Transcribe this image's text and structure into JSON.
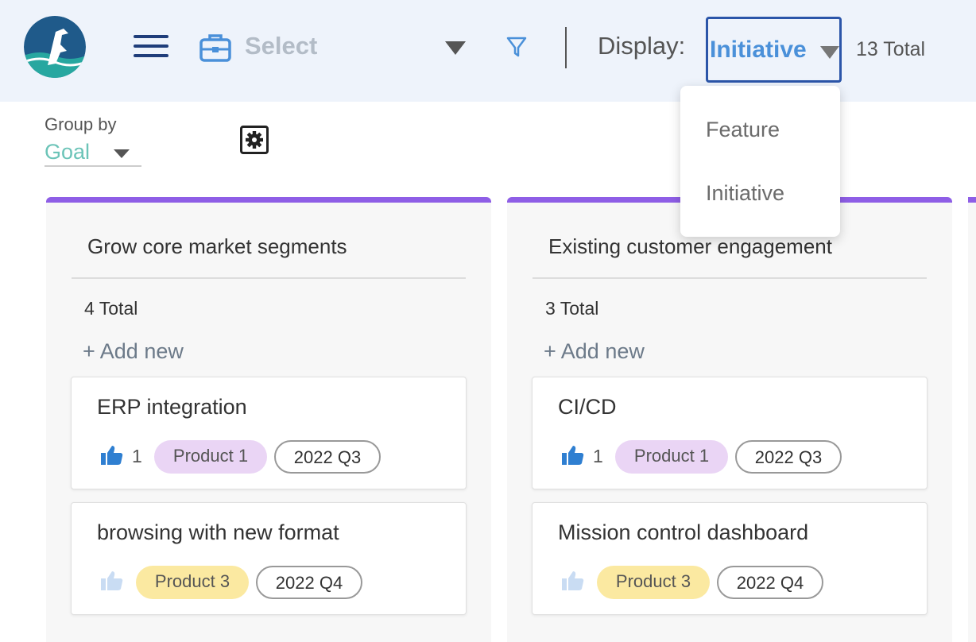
{
  "header": {
    "select_label": "Select",
    "display_label": "Display:",
    "display_value": "Initiative",
    "total": "13 Total"
  },
  "groupby": {
    "label": "Group by",
    "value": "Goal"
  },
  "dropdown": {
    "options": [
      "Feature",
      "Initiative"
    ]
  },
  "columns": [
    {
      "title": "Grow core market segments",
      "total": "4 Total",
      "add_label": "+ Add new",
      "cards": [
        {
          "title": "ERP integration",
          "votes": "1",
          "product": "Product 1",
          "quarter": "2022 Q3"
        },
        {
          "title": "browsing with new format",
          "votes": "",
          "product": "Product 3",
          "quarter": "2022 Q4"
        }
      ]
    },
    {
      "title": "Existing customer engagement",
      "total": "3 Total",
      "add_label": "+ Add new",
      "cards": [
        {
          "title": "CI/CD",
          "votes": "1",
          "product": "Product 1",
          "quarter": "2022 Q3"
        },
        {
          "title": "Mission control dashboard",
          "votes": "",
          "product": "Product 3",
          "quarter": "2022 Q4"
        }
      ]
    }
  ],
  "colors": {
    "accent": "#8e5ee6",
    "header_bg": "#eef3fb",
    "primary_blue": "#4a90d9",
    "product1": "#ead5f5",
    "product3": "#fbe9a1",
    "groupby": "#6cc4b8"
  }
}
